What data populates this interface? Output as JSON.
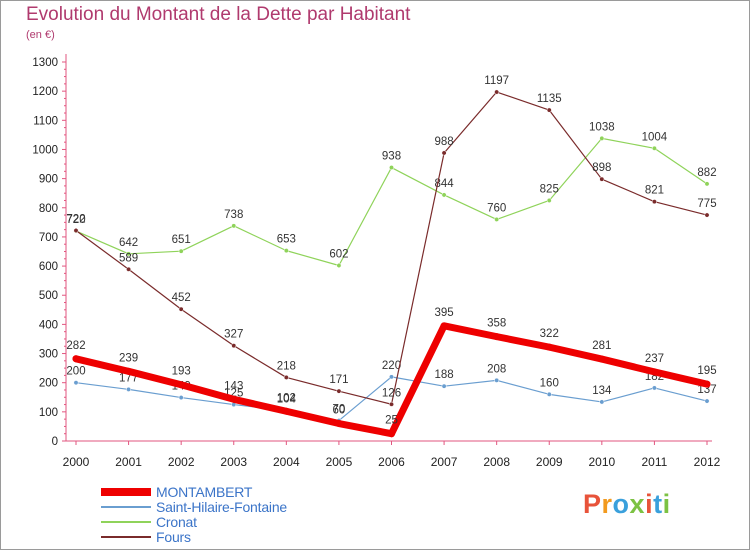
{
  "title": "Evolution du Montant de la Dette par Habitant",
  "unit": "(en €)",
  "logo": {
    "text": "Proxiti",
    "colors": [
      "#e8533a",
      "#f29a1e",
      "#3aa0dc",
      "#7cc243",
      "#e8533a",
      "#3aa0dc",
      "#7cc243"
    ]
  },
  "chart_data": {
    "type": "line",
    "x": [
      "2000",
      "2001",
      "2002",
      "2003",
      "2004",
      "2005",
      "2006",
      "2007",
      "2008",
      "2009",
      "2010",
      "2011",
      "2012"
    ],
    "ylim": [
      0,
      1300
    ],
    "yticks": [
      "0",
      "100",
      "200",
      "300",
      "400",
      "500",
      "600",
      "700",
      "800",
      "900",
      "1000",
      "1100",
      "1200",
      "1300"
    ],
    "grid": false,
    "legend_position": "bottom-left",
    "series": [
      {
        "name": "Saint-Hilaire-Fontaine",
        "color": "#6a9ed0",
        "width": 1.2,
        "marker": 3,
        "values": [
          200,
          177,
          149,
          125,
          104,
          70,
          220,
          188,
          208,
          160,
          134,
          182,
          137
        ],
        "labels": [
          "200",
          "177",
          "149",
          "125",
          "104",
          "70",
          "220",
          "188",
          "208",
          "160",
          "134",
          "182",
          "137"
        ]
      },
      {
        "name": "Cronat",
        "color": "#8fd35a",
        "width": 1.2,
        "marker": 3,
        "values": [
          720,
          642,
          651,
          738,
          653,
          602,
          938,
          844,
          760,
          825,
          1038,
          1004,
          882
        ],
        "labels": [
          "720",
          "642",
          "651",
          "738",
          "653",
          "602",
          "938",
          "844",
          "760",
          "825",
          "1038",
          "1004",
          "882"
        ]
      },
      {
        "name": "Fours",
        "color": "#7a2b2b",
        "width": 1.2,
        "marker": 3,
        "values": [
          722,
          589,
          452,
          327,
          218,
          171,
          126,
          988,
          1197,
          1135,
          898,
          821,
          775
        ],
        "labels": [
          "722",
          "589",
          "452",
          "327",
          "218",
          "171",
          "126",
          "988",
          "1197",
          "1135",
          "898",
          "821",
          "775"
        ]
      },
      {
        "name": "MONTAMBERT",
        "color": "#ee0000",
        "width": 7,
        "marker": 7,
        "values": [
          282,
          239,
          193,
          143,
          102,
          60,
          25,
          395,
          358,
          322,
          281,
          237,
          195
        ],
        "labels": [
          "282",
          "239",
          "193",
          "143",
          "102",
          "60",
          "25",
          "395",
          "358",
          "322",
          "281",
          "237",
          "195"
        ]
      }
    ],
    "legend": [
      "MONTAMBERT",
      "Saint-Hilaire-Fontaine",
      "Cronat",
      "Fours"
    ]
  }
}
